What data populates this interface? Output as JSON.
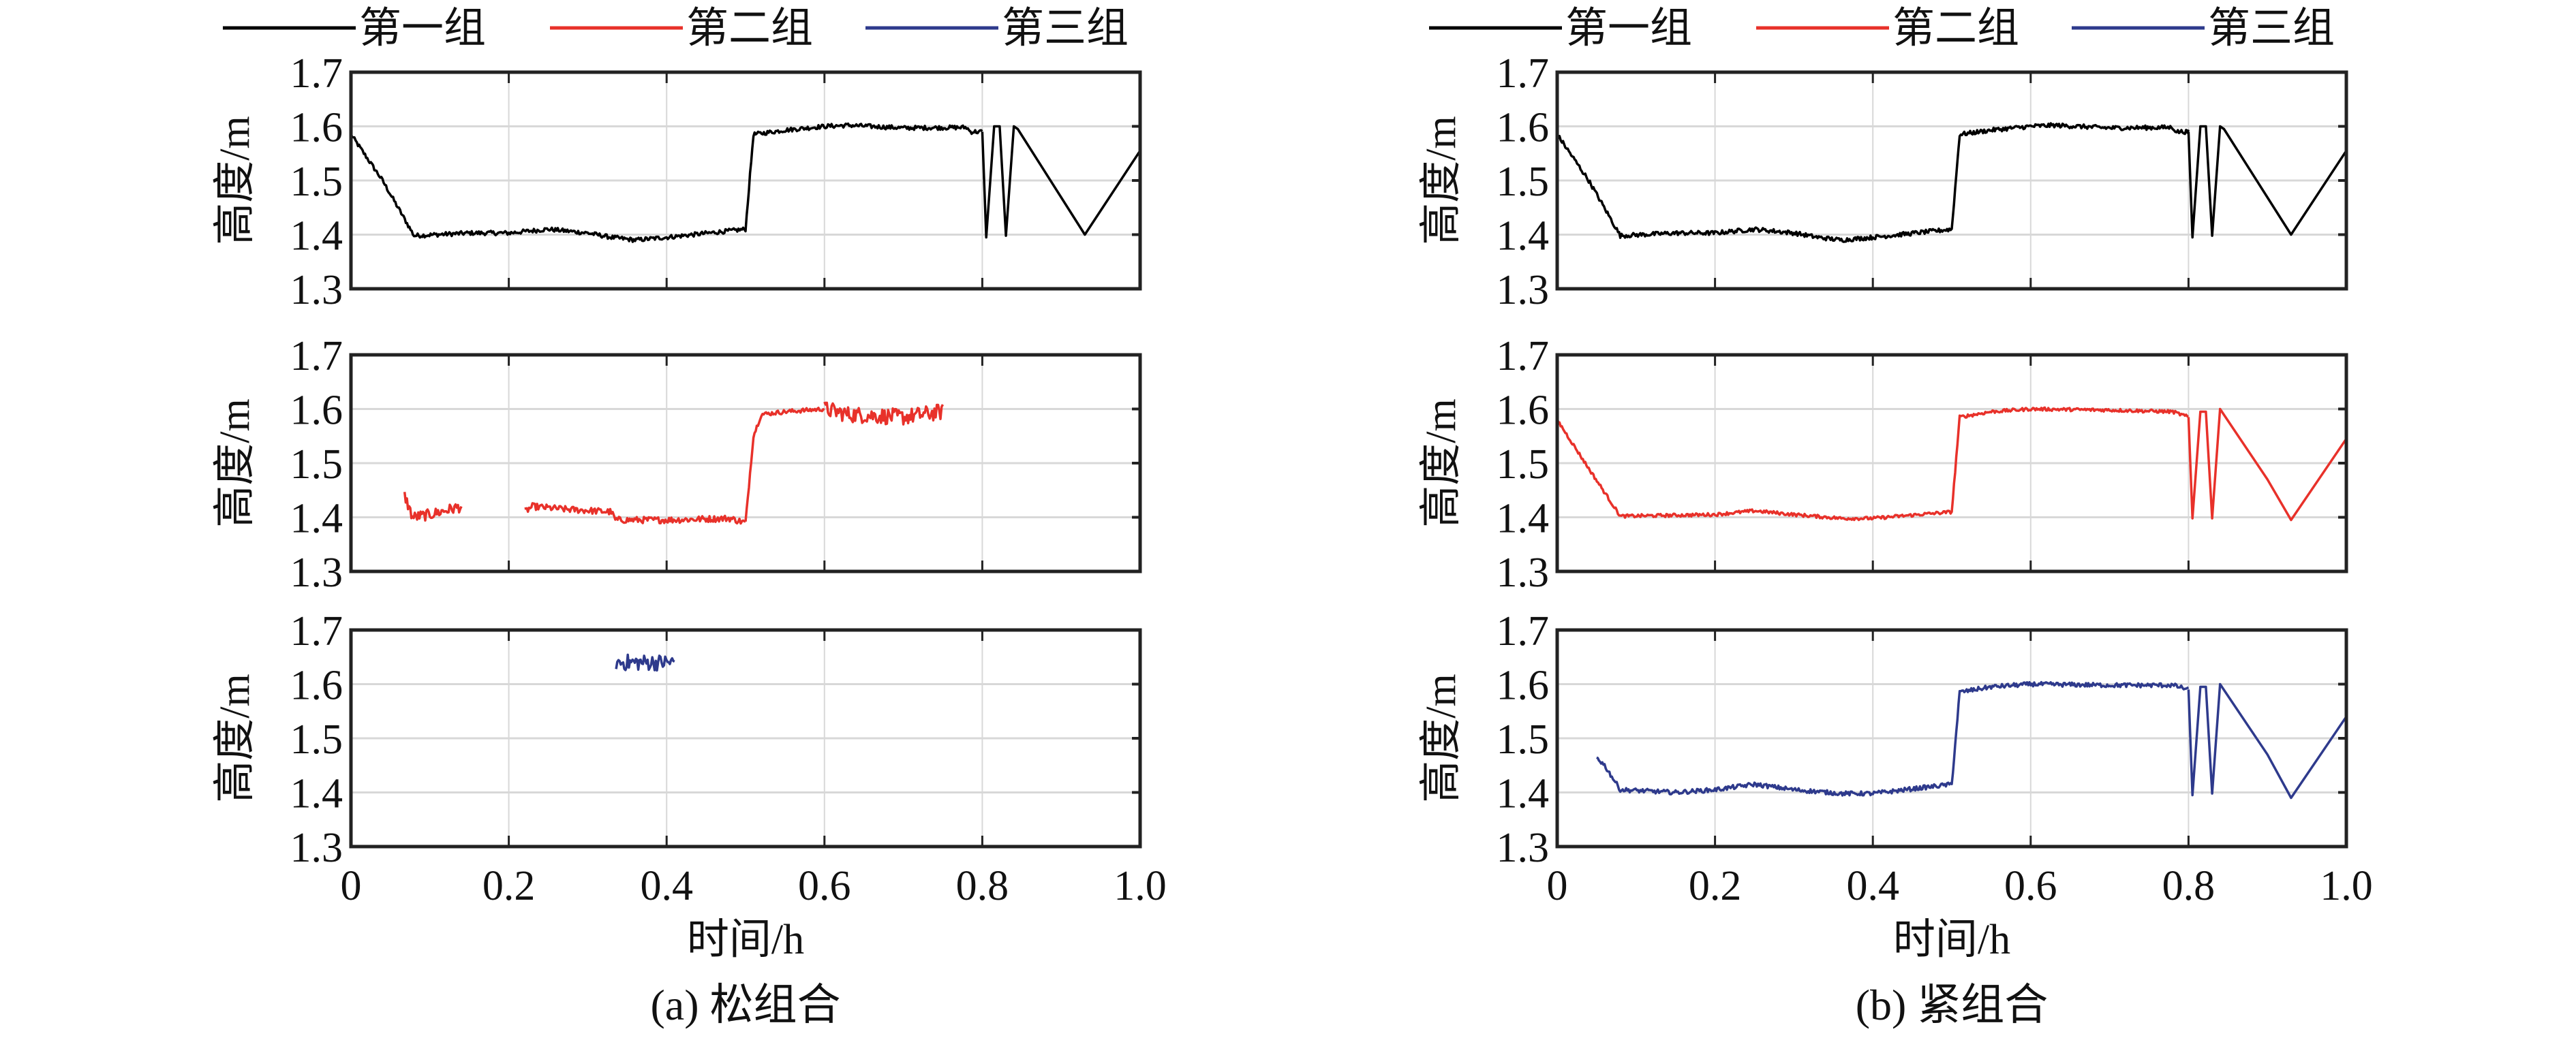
{
  "chart_data": {
    "type": "line",
    "xlabel": "时间/h",
    "ylabel": "高度/m",
    "xlim": [
      0,
      1.0
    ],
    "ylim": [
      1.3,
      1.7
    ],
    "xticks": [
      "0",
      "0.2",
      "0.4",
      "0.6",
      "0.8",
      "1.0"
    ],
    "yticks": [
      "1.3",
      "1.4",
      "1.5",
      "1.6",
      "1.7"
    ],
    "grid": true,
    "legend": {
      "placement": "top",
      "entries": [
        {
          "name": "第一组",
          "color": "#000000"
        },
        {
          "name": "第二组",
          "color": "#e8312a"
        },
        {
          "name": "第三组",
          "color": "#2e3a8c"
        }
      ]
    },
    "panels": [
      {
        "caption": "(a) 松组合",
        "subplots": [
          {
            "series": "第一组",
            "color": "#000000",
            "segments": [
              {
                "noise": 0.004,
                "points": [
                  [
                    0,
                    1.585
                  ],
                  [
                    0.04,
                    1.5
                  ],
                  [
                    0.08,
                    1.398
                  ],
                  [
                    0.15,
                    1.403
                  ],
                  [
                    0.2,
                    1.403
                  ],
                  [
                    0.25,
                    1.41
                  ],
                  [
                    0.3,
                    1.403
                  ],
                  [
                    0.33,
                    1.395
                  ],
                  [
                    0.36,
                    1.39
                  ],
                  [
                    0.4,
                    1.395
                  ],
                  [
                    0.5,
                    1.41
                  ],
                  [
                    0.51,
                    1.585
                  ],
                  [
                    0.55,
                    1.593
                  ],
                  [
                    0.6,
                    1.6
                  ],
                  [
                    0.63,
                    1.602
                  ],
                  [
                    0.7,
                    1.597
                  ],
                  [
                    0.78,
                    1.598
                  ],
                  [
                    0.785,
                    1.59
                  ],
                  [
                    0.8,
                    1.59
                  ]
                ]
              },
              {
                "noise": 0,
                "points": [
                  [
                    0.8,
                    1.59
                  ],
                  [
                    0.805,
                    1.395
                  ],
                  [
                    0.815,
                    1.6
                  ],
                  [
                    0.822,
                    1.6
                  ],
                  [
                    0.83,
                    1.398
                  ],
                  [
                    0.84,
                    1.6
                  ],
                  [
                    0.845,
                    1.595
                  ],
                  [
                    0.93,
                    1.4
                  ],
                  [
                    1.0,
                    1.555
                  ]
                ]
              }
            ]
          },
          {
            "series": "第二组",
            "color": "#e8312a",
            "segments": [
              {
                "noise": 0.01,
                "points": [
                  [
                    0.068,
                    1.44
                  ],
                  [
                    0.078,
                    1.4
                  ],
                  [
                    0.1,
                    1.405
                  ],
                  [
                    0.14,
                    1.42
                  ]
                ]
              },
              {
                "noise": 0.006,
                "points": [
                  [
                    0.22,
                    1.41
                  ],
                  [
                    0.23,
                    1.42
                  ],
                  [
                    0.27,
                    1.415
                  ],
                  [
                    0.33,
                    1.41
                  ],
                  [
                    0.335,
                    1.395
                  ],
                  [
                    0.4,
                    1.395
                  ],
                  [
                    0.48,
                    1.398
                  ],
                  [
                    0.5,
                    1.39
                  ]
                ]
              },
              {
                "noise": 0.004,
                "points": [
                  [
                    0.5,
                    1.39
                  ],
                  [
                    0.51,
                    1.55
                  ],
                  [
                    0.52,
                    1.59
                  ],
                  [
                    0.55,
                    1.595
                  ],
                  [
                    0.6,
                    1.6
                  ]
                ]
              },
              {
                "noise": 0.015,
                "points": [
                  [
                    0.6,
                    1.6
                  ],
                  [
                    0.63,
                    1.59
                  ],
                  [
                    0.7,
                    1.585
                  ],
                  [
                    0.75,
                    1.595
                  ]
                ]
              }
            ]
          },
          {
            "series": "第三组",
            "color": "#2e3a8c",
            "segments": [
              {
                "noise": 0.015,
                "points": [
                  [
                    0.336,
                    1.64
                  ],
                  [
                    0.37,
                    1.64
                  ],
                  [
                    0.41,
                    1.64
                  ]
                ]
              }
            ]
          }
        ]
      },
      {
        "caption": "(b) 紧组合",
        "subplots": [
          {
            "series": "第一组",
            "color": "#000000",
            "segments": [
              {
                "noise": 0.004,
                "points": [
                  [
                    0,
                    1.585
                  ],
                  [
                    0.04,
                    1.5
                  ],
                  [
                    0.08,
                    1.398
                  ],
                  [
                    0.15,
                    1.403
                  ],
                  [
                    0.2,
                    1.403
                  ],
                  [
                    0.25,
                    1.41
                  ],
                  [
                    0.3,
                    1.403
                  ],
                  [
                    0.33,
                    1.395
                  ],
                  [
                    0.36,
                    1.39
                  ],
                  [
                    0.4,
                    1.395
                  ],
                  [
                    0.5,
                    1.41
                  ],
                  [
                    0.51,
                    1.585
                  ],
                  [
                    0.55,
                    1.593
                  ],
                  [
                    0.6,
                    1.6
                  ],
                  [
                    0.63,
                    1.602
                  ],
                  [
                    0.7,
                    1.597
                  ],
                  [
                    0.78,
                    1.598
                  ],
                  [
                    0.785,
                    1.59
                  ],
                  [
                    0.8,
                    1.59
                  ]
                ]
              },
              {
                "noise": 0,
                "points": [
                  [
                    0.8,
                    1.59
                  ],
                  [
                    0.805,
                    1.395
                  ],
                  [
                    0.815,
                    1.6
                  ],
                  [
                    0.822,
                    1.6
                  ],
                  [
                    0.83,
                    1.398
                  ],
                  [
                    0.84,
                    1.6
                  ],
                  [
                    0.845,
                    1.595
                  ],
                  [
                    0.93,
                    1.4
                  ],
                  [
                    1.0,
                    1.555
                  ]
                ]
              }
            ]
          },
          {
            "series": "第二组",
            "color": "#e8312a",
            "segments": [
              {
                "noise": 0.003,
                "points": [
                  [
                    0,
                    1.58
                  ],
                  [
                    0.04,
                    1.49
                  ],
                  [
                    0.08,
                    1.402
                  ],
                  [
                    0.2,
                    1.405
                  ],
                  [
                    0.25,
                    1.412
                  ],
                  [
                    0.3,
                    1.405
                  ],
                  [
                    0.36,
                    1.398
                  ],
                  [
                    0.4,
                    1.398
                  ],
                  [
                    0.5,
                    1.41
                  ],
                  [
                    0.51,
                    1.585
                  ],
                  [
                    0.55,
                    1.595
                  ],
                  [
                    0.6,
                    1.6
                  ],
                  [
                    0.7,
                    1.598
                  ],
                  [
                    0.78,
                    1.595
                  ],
                  [
                    0.8,
                    1.585
                  ]
                ]
              },
              {
                "noise": 0,
                "points": [
                  [
                    0.8,
                    1.585
                  ],
                  [
                    0.805,
                    1.398
                  ],
                  [
                    0.815,
                    1.595
                  ],
                  [
                    0.822,
                    1.595
                  ],
                  [
                    0.83,
                    1.398
                  ],
                  [
                    0.84,
                    1.6
                  ],
                  [
                    0.9,
                    1.47
                  ],
                  [
                    0.93,
                    1.395
                  ],
                  [
                    1.0,
                    1.545
                  ]
                ]
              }
            ]
          },
          {
            "series": "第三组",
            "color": "#2e3a8c",
            "segments": [
              {
                "noise": 0.004,
                "points": [
                  [
                    0.05,
                    1.465
                  ],
                  [
                    0.06,
                    1.45
                  ],
                  [
                    0.08,
                    1.405
                  ],
                  [
                    0.15,
                    1.4
                  ],
                  [
                    0.2,
                    1.405
                  ],
                  [
                    0.25,
                    1.415
                  ],
                  [
                    0.3,
                    1.405
                  ],
                  [
                    0.36,
                    1.398
                  ],
                  [
                    0.4,
                    1.398
                  ],
                  [
                    0.5,
                    1.415
                  ],
                  [
                    0.51,
                    1.585
                  ],
                  [
                    0.55,
                    1.595
                  ],
                  [
                    0.6,
                    1.6
                  ],
                  [
                    0.7,
                    1.598
                  ],
                  [
                    0.78,
                    1.598
                  ],
                  [
                    0.8,
                    1.59
                  ]
                ]
              },
              {
                "noise": 0,
                "points": [
                  [
                    0.8,
                    1.59
                  ],
                  [
                    0.805,
                    1.395
                  ],
                  [
                    0.815,
                    1.595
                  ],
                  [
                    0.822,
                    1.595
                  ],
                  [
                    0.83,
                    1.398
                  ],
                  [
                    0.84,
                    1.6
                  ],
                  [
                    0.9,
                    1.47
                  ],
                  [
                    0.93,
                    1.39
                  ],
                  [
                    1.0,
                    1.54
                  ]
                ]
              }
            ]
          }
        ]
      }
    ]
  }
}
